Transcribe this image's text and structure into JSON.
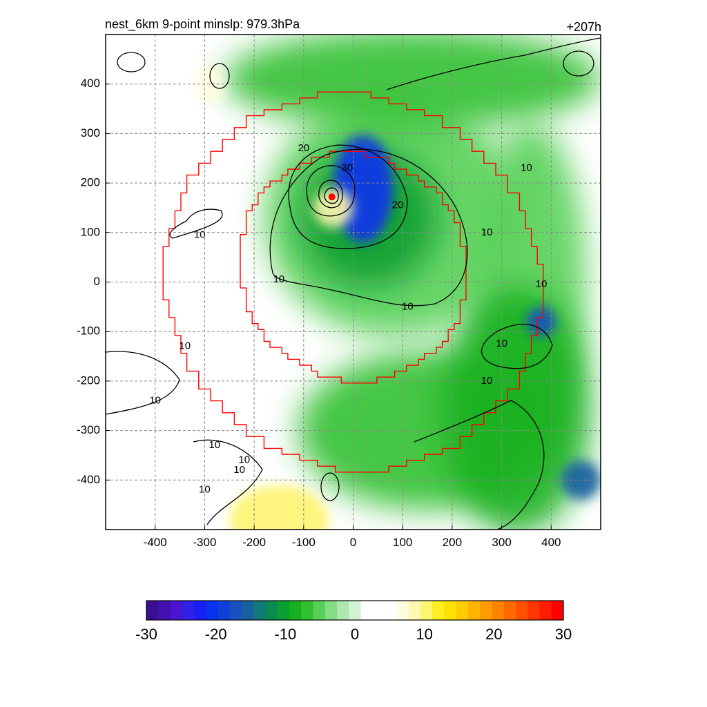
{
  "chart_data": {
    "type": "heatmap",
    "title": "nest_6km  9-point minslp: 979.3hPa",
    "time_label": "+207h",
    "xlabel": "",
    "ylabel": "",
    "xlim": [
      -500,
      500
    ],
    "ylim": [
      -500,
      500
    ],
    "x_ticks": [
      -400,
      -300,
      -200,
      -100,
      0,
      100,
      200,
      300,
      400
    ],
    "y_ticks": [
      400,
      300,
      200,
      100,
      0,
      -100,
      -200,
      -300,
      -400
    ],
    "grid": true,
    "colorbar": {
      "range": [
        -30,
        30
      ],
      "ticks": [
        -30,
        -20,
        -10,
        0,
        10,
        20,
        30
      ],
      "colors": [
        "#3a0f90",
        "#4410b0",
        "#4a14d0",
        "#3020e8",
        "#1820f4",
        "#0a30f0",
        "#1040d8",
        "#1850c0",
        "#1a60a0",
        "#117a78",
        "#0a8c50",
        "#0a9e30",
        "#14b020",
        "#30c030",
        "#58d058",
        "#84dc84",
        "#aee8ae",
        "#d4f2d4",
        "#ffffff",
        "#ffffff",
        "#ffffff",
        "#fffde0",
        "#fff8b0",
        "#fff470",
        "#ffef20",
        "#ffe000",
        "#ffcc00",
        "#ffb400",
        "#ff9c00",
        "#ff8200",
        "#ff6a00",
        "#ff5000",
        "#ff3600",
        "#ff1c00",
        "#ff0000"
      ]
    },
    "contour_labels": [
      "10",
      "10",
      "10",
      "10",
      "10",
      "10",
      "10",
      "10",
      "10",
      "10",
      "10",
      "10",
      "10",
      "10",
      "20",
      "20",
      "30"
    ],
    "center_marker": {
      "x": -43,
      "y": 172,
      "color": "#ff0000"
    },
    "rings": [
      {
        "name": "outer-ring",
        "color": "#ff0000",
        "radius": 380,
        "center": [
          0,
          0
        ]
      },
      {
        "name": "inner-ring",
        "color": "#ff0000",
        "radius": 230,
        "center": [
          0,
          30
        ]
      }
    ],
    "fields": [
      {
        "x": 80,
        "y": 130,
        "sx": 260,
        "sy": 240,
        "v": -5
      },
      {
        "x": 30,
        "y": 130,
        "sx": 140,
        "sy": 140,
        "v": -10
      },
      {
        "x": 20,
        "y": 190,
        "sx": 60,
        "sy": 110,
        "v": -20
      },
      {
        "x": 360,
        "y": 0,
        "sx": 110,
        "sy": 320,
        "v": -6
      },
      {
        "x": 150,
        "y": -300,
        "sx": 260,
        "sy": 160,
        "v": -7
      },
      {
        "x": 330,
        "y": -260,
        "sx": 150,
        "sy": 250,
        "v": -8
      },
      {
        "x": 380,
        "y": -80,
        "sx": 30,
        "sy": 30,
        "v": -18
      },
      {
        "x": 460,
        "y": -400,
        "sx": 40,
        "sy": 40,
        "v": -16
      },
      {
        "x": 120,
        "y": 410,
        "sx": 380,
        "sy": 100,
        "v": -7
      },
      {
        "x": -150,
        "y": -480,
        "sx": 100,
        "sy": 70,
        "v": 10
      },
      {
        "x": -40,
        "y": 150,
        "sx": 40,
        "sy": 40,
        "v": 8
      },
      {
        "x": -290,
        "y": 400,
        "sx": 30,
        "sy": 40,
        "v": 6
      }
    ]
  }
}
